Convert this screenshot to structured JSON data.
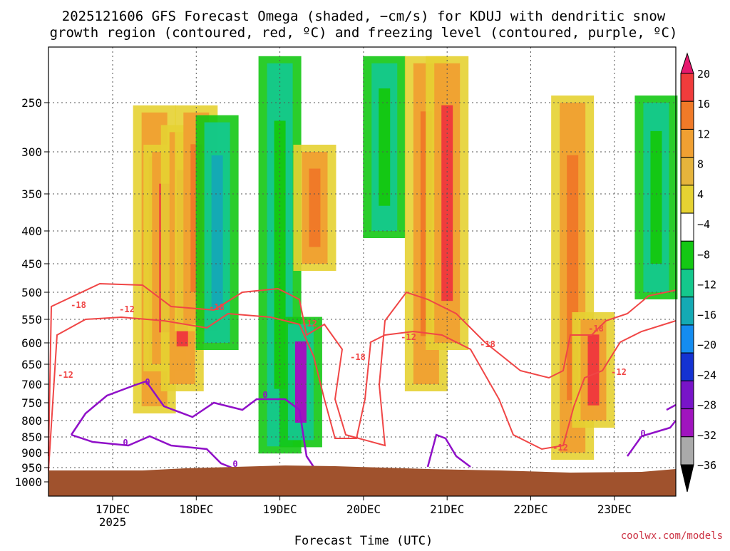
{
  "chart_data": {
    "type": "heatmap",
    "title_line1": "2025121606 GFS Forecast Omega (shaded, −cm/s) for KDUJ with dendritic snow",
    "title_line2": "growth region (contoured, red, ºC) and freezing level (contoured, purple, ºC)",
    "xlabel": "Forecast Time (UTC)",
    "ylabel": "",
    "watermark": "coolwx.com/models",
    "y_axis": {
      "scale": "pressure",
      "ticks": [
        "250",
        "300",
        "350",
        "400",
        "450",
        "500",
        "550",
        "600",
        "650",
        "700",
        "750",
        "800",
        "850",
        "900",
        "950",
        "1000"
      ],
      "range": [
        200,
        1050
      ],
      "inverted": true
    },
    "x_axis": {
      "ticks": [
        "17DEC",
        "18DEC",
        "19DEC",
        "20DEC",
        "21DEC",
        "22DEC",
        "23DEC"
      ],
      "first_tick_sublabel": "2025",
      "range_days": [
        "2025-12-16T06",
        "2025-12-23T18"
      ]
    },
    "grid": true,
    "colorbar": {
      "ticks": [
        "20",
        "16",
        "12",
        "8",
        "4",
        "−4",
        "−8",
        "−12",
        "−16",
        "−20",
        "−24",
        "−28",
        "−32",
        "−36"
      ],
      "colors": [
        "#e6196e",
        "#f03c3c",
        "#f07a28",
        "#f0a032",
        "#e6b43c",
        "#e6d232",
        "#ffffff",
        "#14c814",
        "#14c88c",
        "#14aab4",
        "#148cf0",
        "#1432d2",
        "#7814c8",
        "#a014be",
        "#aaaaaa",
        "#000000"
      ]
    },
    "dgz_contour": {
      "color": "#f04646",
      "levels": [
        "-18",
        "-12",
        "-18",
        "-12",
        "-18",
        "-12",
        "-18",
        "-12",
        "-18",
        "-12",
        "-12"
      ]
    },
    "freezing_contour": {
      "color": "#9010c8",
      "levels": [
        "0",
        "0",
        "0",
        "0",
        "0"
      ]
    },
    "terrain_color": "#a0522d",
    "omega_cells": [
      {
        "time": "2025-12-17T12",
        "p_top": 260,
        "p_bot": 760,
        "value": 14
      },
      {
        "time": "2025-12-17T15",
        "p_top": 300,
        "p_bot": 650,
        "value": 18
      },
      {
        "time": "2025-12-17T20",
        "p_top": 280,
        "p_bot": 700,
        "value": 16
      },
      {
        "time": "2025-12-18T00",
        "p_top": 260,
        "p_bot": 560,
        "value": 12
      },
      {
        "time": "2025-12-18T06",
        "p_top": 270,
        "p_bot": 600,
        "value": -20
      },
      {
        "time": "2025-12-19T00",
        "p_top": 210,
        "p_bot": 880,
        "value": -12
      },
      {
        "time": "2025-12-19T06",
        "p_top": 560,
        "p_bot": 860,
        "value": -36
      },
      {
        "time": "2025-12-19T10",
        "p_top": 300,
        "p_bot": 450,
        "value": 14
      },
      {
        "time": "2025-12-20T06",
        "p_top": 210,
        "p_bot": 400,
        "value": -12
      },
      {
        "time": "2025-12-20T18",
        "p_top": 210,
        "p_bot": 700,
        "value": 14
      },
      {
        "time": "2025-12-21T00",
        "p_top": 210,
        "p_bot": 600,
        "value": 16
      },
      {
        "time": "2025-12-22T12",
        "p_top": 250,
        "p_bot": 900,
        "value": 12
      },
      {
        "time": "2025-12-22T18",
        "p_top": 550,
        "p_bot": 800,
        "value": 16
      },
      {
        "time": "2025-12-23T12",
        "p_top": 250,
        "p_bot": 500,
        "value": -10
      }
    ]
  }
}
